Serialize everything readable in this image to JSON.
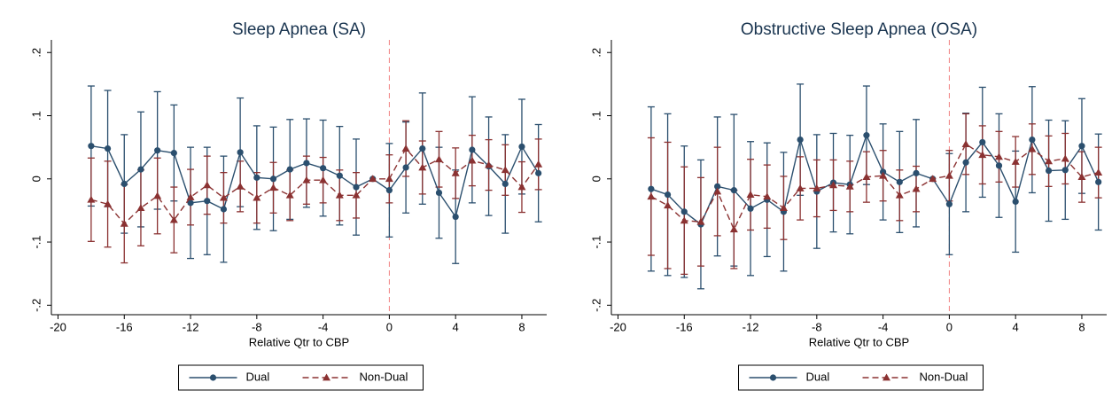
{
  "chart_data": [
    {
      "type": "line",
      "title": "Sleep Apnea (SA)",
      "xlabel": "Relative Qtr to CBP",
      "x": [
        -18,
        -17,
        -16,
        -15,
        -14,
        -13,
        -12,
        -11,
        -10,
        -9,
        -8,
        -7,
        -6,
        -5,
        -4,
        -3,
        -2,
        -1,
        0,
        1,
        2,
        3,
        4,
        5,
        6,
        7,
        8,
        9
      ],
      "series": [
        {
          "name": "Dual",
          "color": "#2b4f6e",
          "marker": "circle",
          "dashed": false,
          "values": [
            0.052,
            0.048,
            -0.008,
            0.015,
            0.045,
            0.041,
            -0.038,
            -0.035,
            -0.048,
            0.042,
            0.002,
            0.0,
            0.015,
            0.025,
            0.017,
            0.005,
            -0.013,
            0,
            -0.018,
            0.018,
            0.048,
            -0.022,
            -0.06,
            0.046,
            0.02,
            -0.008,
            0.051,
            0.009
          ],
          "errors": [
            0.095,
            0.092,
            0.078,
            0.091,
            0.093,
            0.076,
            0.088,
            0.085,
            0.084,
            0.086,
            0.082,
            0.082,
            0.079,
            0.07,
            0.076,
            0.078,
            0.076,
            null,
            0.074,
            0.072,
            0.088,
            0.072,
            0.074,
            0.084,
            0.078,
            0.078,
            0.075,
            0.077
          ]
        },
        {
          "name": "Non-Dual",
          "color": "#8b3232",
          "marker": "triangle",
          "dashed": true,
          "values": [
            -0.033,
            -0.04,
            -0.071,
            -0.046,
            -0.027,
            -0.065,
            -0.029,
            -0.01,
            -0.03,
            -0.012,
            -0.03,
            -0.014,
            -0.026,
            -0.002,
            -0.002,
            -0.026,
            -0.026,
            0,
            0.0,
            0.048,
            0.018,
            0.031,
            0.009,
            0.029,
            0.022,
            0.014,
            -0.013,
            0.023
          ],
          "errors": [
            0.066,
            0.068,
            0.062,
            0.06,
            0.06,
            0.052,
            0.044,
            0.046,
            0.04,
            0.04,
            0.04,
            0.04,
            0.04,
            0.038,
            0.036,
            0.04,
            0.036,
            null,
            0.038,
            0.044,
            0.042,
            0.044,
            0.04,
            0.04,
            0.04,
            0.04,
            0.04,
            0.04
          ]
        }
      ],
      "xlim": [
        -20.4,
        9.5
      ],
      "xticks": [
        -20,
        -16,
        -12,
        -8,
        -4,
        0,
        4,
        8
      ],
      "ylim": [
        -0.215,
        0.22
      ],
      "yticks": [
        {
          "value": -0.2,
          "label": "-.2"
        },
        {
          "value": -0.1,
          "label": "-.1"
        },
        0,
        {
          "value": 0.1,
          "label": ".1"
        },
        {
          "value": 0.2,
          "label": ".2"
        }
      ],
      "reference_x": 0,
      "reference_color": "#f08080"
    },
    {
      "type": "line",
      "title": "Obstructive Sleep Apnea (OSA)",
      "xlabel": "Relative Qtr to CBP",
      "x": [
        -18,
        -17,
        -16,
        -15,
        -14,
        -13,
        -12,
        -11,
        -10,
        -9,
        -8,
        -7,
        -6,
        -5,
        -4,
        -3,
        -2,
        -1,
        0,
        1,
        2,
        3,
        4,
        5,
        6,
        7,
        8,
        9
      ],
      "series": [
        {
          "name": "Dual",
          "color": "#2b4f6e",
          "marker": "circle",
          "dashed": false,
          "values": [
            -0.016,
            -0.025,
            -0.052,
            -0.072,
            -0.012,
            -0.018,
            -0.047,
            -0.033,
            -0.052,
            0.062,
            -0.02,
            -0.006,
            -0.009,
            0.069,
            0.011,
            -0.005,
            0.009,
            0,
            -0.04,
            0.026,
            0.058,
            0.021,
            -0.036,
            0.062,
            0.013,
            0.014,
            0.052,
            -0.005
          ],
          "errors": [
            0.13,
            0.128,
            0.104,
            0.102,
            0.11,
            0.12,
            0.106,
            0.09,
            0.094,
            0.088,
            0.09,
            0.078,
            0.078,
            0.078,
            0.076,
            0.08,
            0.085,
            null,
            0.08,
            0.078,
            0.087,
            0.082,
            0.08,
            0.084,
            0.08,
            0.078,
            0.075,
            0.076
          ]
        },
        {
          "name": "Non-Dual",
          "color": "#8b3232",
          "marker": "triangle",
          "dashed": true,
          "values": [
            -0.028,
            -0.042,
            -0.066,
            -0.068,
            -0.02,
            -0.08,
            -0.025,
            -0.028,
            -0.046,
            -0.015,
            -0.015,
            -0.01,
            -0.012,
            0.003,
            0.005,
            -0.026,
            -0.016,
            0,
            0.005,
            0.055,
            0.038,
            0.035,
            0.027,
            0.047,
            0.028,
            0.032,
            0.003,
            0.01
          ],
          "errors": [
            0.093,
            0.1,
            0.085,
            0.07,
            0.07,
            0.062,
            0.056,
            0.05,
            0.05,
            0.05,
            0.045,
            0.04,
            0.04,
            0.04,
            0.04,
            0.04,
            0.036,
            null,
            0.04,
            0.048,
            0.046,
            0.04,
            0.04,
            0.04,
            0.04,
            0.04,
            0.04,
            0.04
          ]
        }
      ],
      "xlim": [
        -20.4,
        9.5
      ],
      "xticks": [
        -20,
        -16,
        -12,
        -8,
        -4,
        0,
        4,
        8
      ],
      "ylim": [
        -0.215,
        0.22
      ],
      "yticks": [
        {
          "value": -0.2,
          "label": "-.2"
        },
        {
          "value": -0.1,
          "label": "-.1"
        },
        0,
        {
          "value": 0.1,
          "label": ".1"
        },
        {
          "value": 0.2,
          "label": ".2"
        }
      ],
      "reference_x": 0,
      "reference_color": "#f08080"
    }
  ]
}
